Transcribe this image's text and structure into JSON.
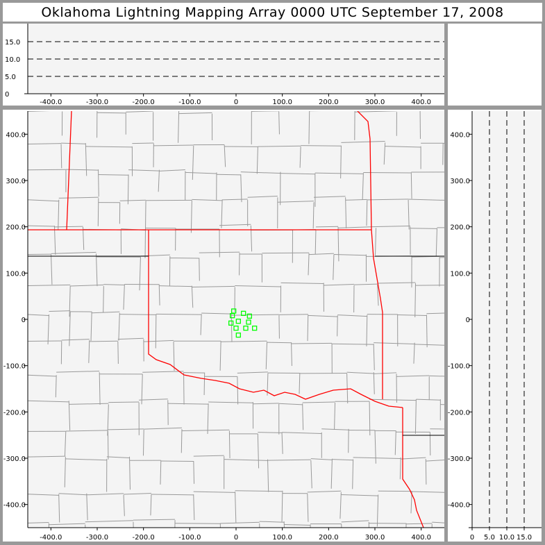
{
  "title": "Oklahoma Lightning Mapping Array   0000 UTC  September 17, 2008",
  "colors": {
    "background": "#999999",
    "plot_fill": "#f4f4f4",
    "county_lines": "#999999",
    "oklahoma_border": "#ff0000",
    "state_lines": "#000000",
    "stations": "#00ff00"
  },
  "top_panel": {
    "x_ticks": [
      "-400.0",
      "-300.0",
      "-200.0",
      "-100.0",
      "0",
      "100.0",
      "200.0",
      "300.0",
      "400.0"
    ],
    "x_tick_values": [
      -400,
      -300,
      -200,
      -100,
      0,
      100,
      200,
      300,
      400
    ],
    "y_ticks": [
      "0",
      "5.0",
      "10.0",
      "15.0"
    ],
    "y_tick_values": [
      0,
      5,
      10,
      15
    ],
    "x_range": [
      -450,
      450
    ],
    "y_range": [
      0,
      20
    ],
    "dashed_levels": [
      5,
      10,
      15
    ]
  },
  "main_map": {
    "x_ticks": [
      "-400.0",
      "-300.0",
      "-200.0",
      "-100.0",
      "0",
      "100.0",
      "200.0",
      "300.0",
      "400.0"
    ],
    "x_tick_values": [
      -400,
      -300,
      -200,
      -100,
      0,
      100,
      200,
      300,
      400
    ],
    "y_ticks": [
      "400.0",
      "300.0",
      "200.0",
      "100.0",
      "0",
      "-100.0",
      "-200.0",
      "-300.0",
      "-400.0"
    ],
    "y_tick_values": [
      400,
      300,
      200,
      100,
      0,
      -100,
      -200,
      -300,
      -400
    ],
    "x_range": [
      -450,
      450
    ],
    "y_range": [
      -450,
      450
    ],
    "stations_km": [
      [
        -5,
        18
      ],
      [
        -8,
        8
      ],
      [
        16,
        13
      ],
      [
        29,
        7
      ],
      [
        -11,
        -8
      ],
      [
        5,
        -4
      ],
      [
        27,
        -6
      ],
      [
        0,
        -19
      ],
      [
        21,
        -19
      ],
      [
        40,
        -19
      ],
      [
        5,
        -34
      ]
    ]
  },
  "right_panel": {
    "x_ticks": [
      "0",
      "5.0",
      "10.0",
      "15.0"
    ],
    "x_tick_values": [
      0,
      5,
      10,
      15
    ],
    "y_ticks": [
      "400.0",
      "300.0",
      "200.0",
      "100.0",
      "0",
      "-100.0",
      "-200.0",
      "-300.0",
      "-400.0"
    ],
    "y_tick_values": [
      400,
      300,
      200,
      100,
      0,
      -100,
      -200,
      -300,
      -400
    ],
    "x_range": [
      0,
      20
    ],
    "dashed_levels": [
      5,
      10,
      15
    ]
  }
}
